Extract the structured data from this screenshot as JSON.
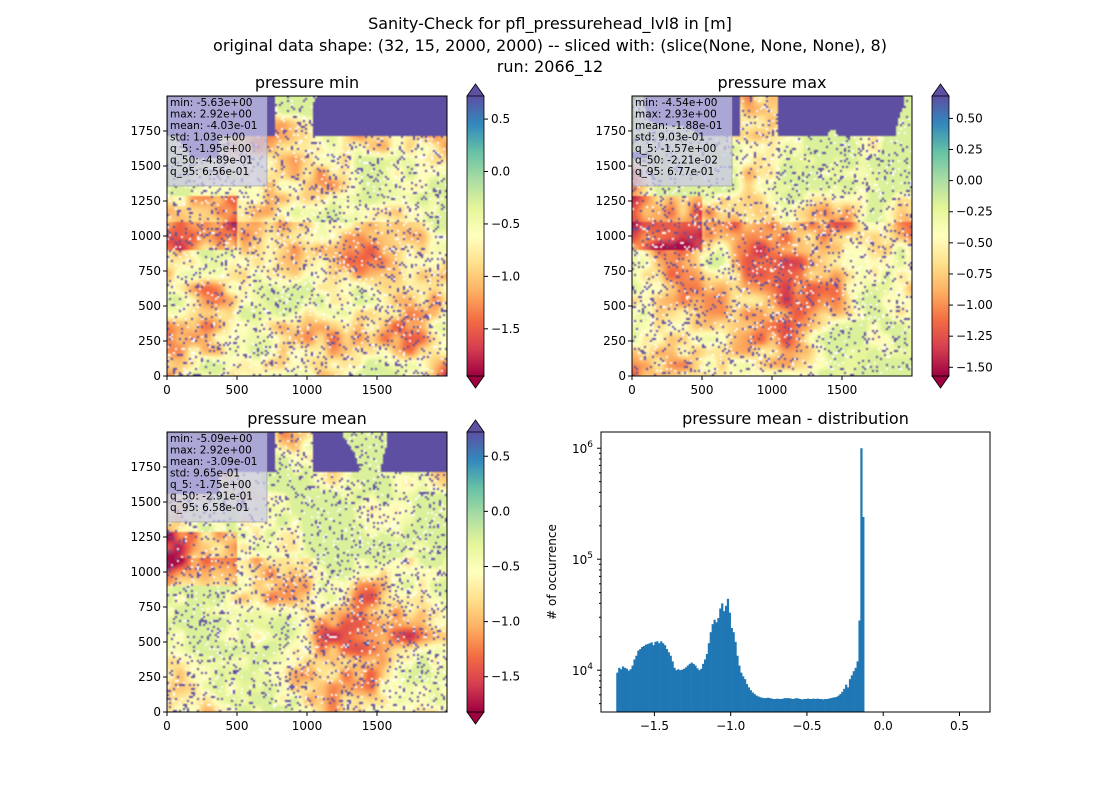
{
  "figure": {
    "title_lines": [
      "Sanity-Check for pfl_pressurehead_lvl8 in [m]",
      "original data shape: (32, 15, 2000, 2000) -- sliced with: (slice(None, None, None), 8)",
      "run: 2066_12"
    ],
    "colormap": [
      "#9e0142",
      "#d53e4f",
      "#f46d43",
      "#fdae61",
      "#fee08b",
      "#ffffbf",
      "#e6f598",
      "#abdda4",
      "#66c2a5",
      "#3288bd",
      "#5e4fa2"
    ],
    "hist_color": "#1f77b4"
  },
  "chart_data": [
    {
      "type": "heatmap",
      "title": "pressure min",
      "xlim": [
        0,
        2000
      ],
      "ylim": [
        0,
        2000
      ],
      "xticks": [
        "0",
        "500",
        "1000",
        "1500"
      ],
      "yticks": [
        "0",
        "250",
        "500",
        "750",
        "1000",
        "1250",
        "1500",
        "1750"
      ],
      "colorbar": {
        "range": [
          -1.95,
          0.72
        ],
        "ticks": [
          -1.5,
          -1.0,
          -0.5,
          0.0,
          0.5
        ],
        "tick_labels": [
          "−1.5",
          "−1.0",
          "−0.5",
          "0.0",
          "0.5"
        ]
      },
      "stats": [
        "min: -5.63e+00",
        "max: 2.92e+00",
        "mean: -4.03e-01",
        "std: 1.03e+00",
        "q_5: -1.95e+00",
        "q_50: -4.89e-01",
        "q_95: 6.56e-01"
      ]
    },
    {
      "type": "heatmap",
      "title": "pressure max",
      "xlim": [
        0,
        2000
      ],
      "ylim": [
        0,
        2000
      ],
      "xticks": [
        "0",
        "500",
        "1000",
        "1500"
      ],
      "yticks": [
        "0",
        "250",
        "500",
        "750",
        "1000",
        "1250",
        "1500",
        "1750"
      ],
      "colorbar": {
        "range": [
          -1.57,
          0.68
        ],
        "ticks": [
          -1.5,
          -1.25,
          -1.0,
          -0.75,
          -0.5,
          -0.25,
          0.0,
          0.25,
          0.5
        ],
        "tick_labels": [
          "−1.50",
          "−1.25",
          "−1.00",
          "−0.75",
          "−0.50",
          "−0.25",
          "0.00",
          "0.25",
          "0.50"
        ]
      },
      "stats": [
        "min: -4.54e+00",
        "max: 2.93e+00",
        "mean: -1.88e-01",
        "std: 9.03e-01",
        "q_5: -1.57e+00",
        "q_50: -2.21e-02",
        "q_95: 6.77e-01"
      ]
    },
    {
      "type": "heatmap",
      "title": "pressure mean",
      "xlim": [
        0,
        2000
      ],
      "ylim": [
        0,
        2000
      ],
      "xticks": [
        "0",
        "500",
        "1000",
        "1500"
      ],
      "yticks": [
        "0",
        "250",
        "500",
        "750",
        "1000",
        "1250",
        "1500",
        "1750"
      ],
      "colorbar": {
        "range": [
          -1.82,
          0.72
        ],
        "ticks": [
          -1.5,
          -1.0,
          -0.5,
          0.0,
          0.5
        ],
        "tick_labels": [
          "−1.5",
          "−1.0",
          "−0.5",
          "0.0",
          "0.5"
        ]
      },
      "stats": [
        "min: -5.09e+00",
        "max: 2.92e+00",
        "mean: -3.09e-01",
        "std: 9.65e-01",
        "q_5: -1.75e+00",
        "q_50: -2.91e-01",
        "q_95: 6.58e-01"
      ]
    },
    {
      "type": "bar",
      "title": "pressure mean - distribution",
      "ylabel": "# of occurrence",
      "xlabel": "",
      "xlim": [
        -1.85,
        0.7
      ],
      "ylog": true,
      "ylim": [
        4200,
        1400000
      ],
      "xticks": [
        -1.5,
        -1.0,
        -0.5,
        0.0,
        0.5
      ],
      "xtick_labels": [
        "−1.5",
        "−1.0",
        "−0.5",
        "0.0",
        "0.5"
      ],
      "yticks": [
        {
          "value": 10000,
          "base": "10",
          "exp": "4"
        },
        {
          "value": 100000,
          "base": "10",
          "exp": "5"
        },
        {
          "value": 1000000,
          "base": "10",
          "exp": "6"
        }
      ],
      "bin_start": -1.75,
      "bin_width": 0.0125,
      "counts": [
        9500,
        10500,
        10200,
        10800,
        10500,
        10300,
        9900,
        10200,
        11000,
        12500,
        13500,
        15000,
        15500,
        16200,
        16500,
        17000,
        17200,
        17500,
        17800,
        16800,
        18000,
        18200,
        17500,
        18200,
        17500,
        16800,
        15500,
        14500,
        13500,
        12000,
        10500,
        10000,
        10200,
        10000,
        10100,
        10300,
        10600,
        11000,
        11400,
        11700,
        11400,
        11000,
        10400,
        10000,
        10300,
        11400,
        12500,
        14000,
        17500,
        22000,
        26000,
        28500,
        27000,
        29500,
        36000,
        40000,
        34000,
        38000,
        44000,
        33000,
        24000,
        22000,
        18000,
        13500,
        11000,
        9500,
        8800,
        8300,
        7500,
        7000,
        6600,
        6300,
        6100,
        5900,
        5800,
        5700,
        5650,
        5600,
        5600,
        5650,
        5600,
        5550,
        5500,
        5500,
        5550,
        5500,
        5500,
        5550,
        5600,
        5600,
        5600,
        5550,
        5500,
        5550,
        5600,
        5550,
        5500,
        5450,
        5500,
        5500,
        5550,
        5500,
        5500,
        5550,
        5500,
        5550,
        5500,
        5500,
        5450,
        5500,
        5500,
        5550,
        5600,
        5650,
        5700,
        5750,
        5900,
        6100,
        6400,
        6800,
        7400,
        7000,
        8300,
        9000,
        9800,
        10500,
        12000,
        28000,
        1000000,
        240000
      ]
    }
  ]
}
